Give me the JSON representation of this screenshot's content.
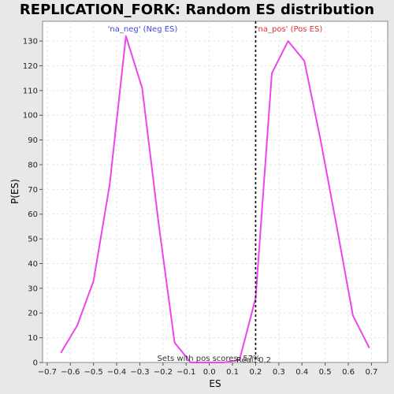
{
  "chart_data": {
    "type": "line",
    "title": "REPLICATION_FORK: Random ES distribution",
    "xlabel": "ES",
    "ylabel": "P(ES)",
    "xlim": [
      -0.72,
      0.77
    ],
    "ylim": [
      0,
      138
    ],
    "xticks": [
      -0.7,
      -0.6,
      -0.5,
      -0.4,
      -0.3,
      -0.2,
      -0.1,
      0.0,
      0.1,
      0.2,
      0.3,
      0.4,
      0.5,
      0.6,
      0.7
    ],
    "xtick_labels": [
      "−0.7",
      "−0.6",
      "−0.5",
      "−0.4",
      "−0.3",
      "−0.2",
      "−0.1",
      "0.0",
      "0.1",
      "0.2",
      "0.3",
      "0.4",
      "0.5",
      "0.6",
      "0.7"
    ],
    "yticks": [
      0,
      10,
      20,
      30,
      40,
      50,
      60,
      70,
      80,
      90,
      100,
      110,
      120,
      130
    ],
    "ytick_labels": [
      "0",
      "10",
      "20",
      "30",
      "40",
      "50",
      "60",
      "70",
      "80",
      "90",
      "100",
      "110",
      "120",
      "130"
    ],
    "grid": true,
    "series": [
      {
        "x": [
          -0.64,
          -0.57,
          -0.5,
          -0.43,
          -0.36,
          -0.29,
          -0.22,
          -0.15,
          -0.08,
          -0.01,
          0.06,
          0.13,
          0.2,
          0.27,
          0.34,
          0.41,
          0.48,
          0.55,
          0.62,
          0.69
        ],
        "y": [
          4,
          15,
          33,
          72,
          132,
          111,
          57,
          8,
          0,
          0,
          0,
          1,
          26,
          117,
          130,
          122,
          90,
          55,
          19,
          6
        ],
        "color": "#ee44ee"
      }
    ],
    "threshold": {
      "x": 0.2,
      "label": "Sets with pos scores: 57%"
    },
    "annotations": {
      "neg": {
        "text": "'na_neg' (Neg ES)",
        "color": "#4444dd"
      },
      "pos": {
        "text": "'na_pos' (Pos ES)",
        "color": "#dd3333"
      },
      "bottom": {
        "text": "Sets with pos scores: 57%"
      },
      "cutoff": {
        "text": "Real: 0.2"
      }
    }
  }
}
